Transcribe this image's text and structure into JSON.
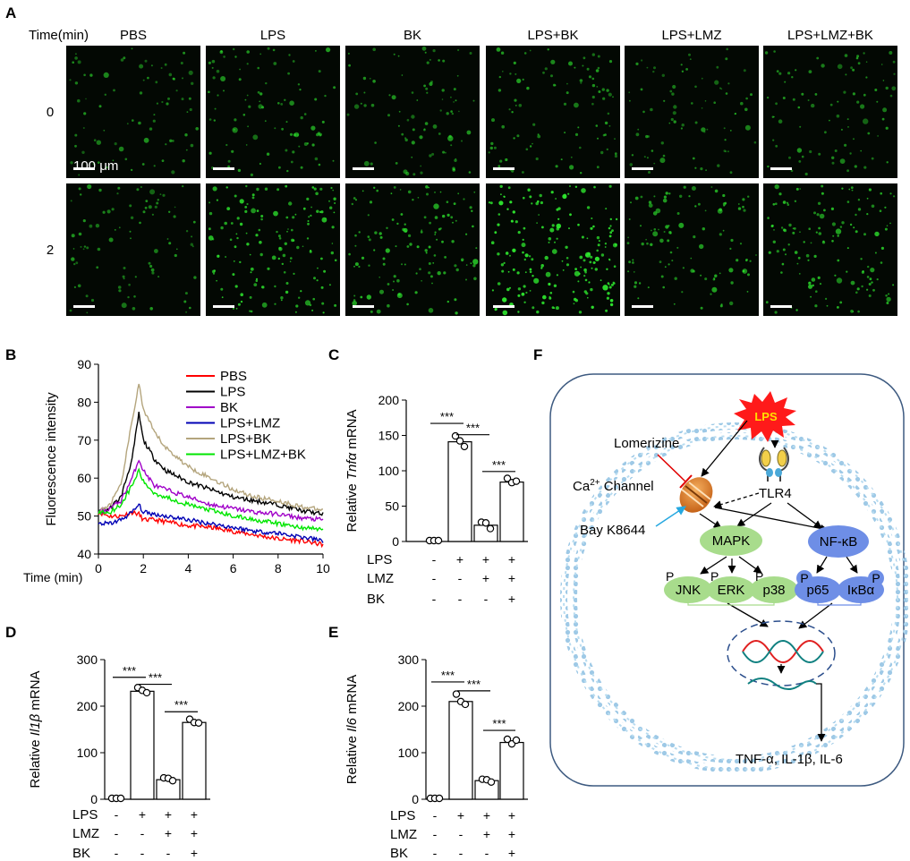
{
  "panel_letters": {
    "A": "A",
    "B": "B",
    "C": "C",
    "D": "D",
    "E": "E",
    "F": "F"
  },
  "panel_a": {
    "row_header": "Time(min)",
    "conditions": [
      "PBS",
      "LPS",
      "BK",
      "LPS+BK",
      "LPS+LMZ",
      "LPS+LMZ+BK"
    ],
    "times": [
      "0",
      "2"
    ],
    "scale_bar": "100 μm",
    "relative_fluorescence": [
      [
        0.25,
        0.35,
        0.3,
        0.35,
        0.25,
        0.3
      ],
      [
        0.3,
        0.7,
        0.55,
        0.95,
        0.45,
        0.6
      ]
    ],
    "colors": {
      "cell": "#2ee62e",
      "background": "#030803"
    }
  },
  "colors": {
    "PBS": "#ff0000",
    "LPS": "#000000",
    "BK": "#a000c8",
    "LPS+LMZ": "#0000b4",
    "LPS+BK": "#b4a57d",
    "LPS+LMZ+BK": "#00e600",
    "lps_burst": "#ff1a1a",
    "lps_text": "#ffe000",
    "membrane": "#9ec9e6",
    "mapk": "#a8dc8c",
    "nfkb": "#6e8ee6",
    "channel": "#e07d20",
    "bay_arrow": "#26a8e0",
    "lomerizine_bar": "#e00000",
    "dna_red": "#e02020",
    "dna_teal": "#108080",
    "dna_ellipse": "#2b4e8c"
  },
  "chart_data": [
    {
      "panel": "B",
      "type": "line",
      "xlabel": "Time (min)",
      "ylabel": "Fluorescence intensity",
      "xlim": [
        0,
        10
      ],
      "ylim": [
        40,
        90
      ],
      "xticks": [
        0,
        2,
        4,
        6,
        8,
        10
      ],
      "yticks": [
        40,
        50,
        60,
        70,
        80,
        90
      ],
      "legend": "top-right",
      "series": [
        {
          "name": "PBS",
          "color": "#ff0000",
          "x": [
            0,
            0.5,
            1,
            1.5,
            1.8,
            2,
            2.5,
            3,
            4,
            5,
            6,
            7,
            8,
            9,
            10
          ],
          "y": [
            51,
            50,
            50,
            51,
            50.5,
            49,
            49,
            48.5,
            47.5,
            47,
            46,
            45,
            44,
            43.5,
            42.5
          ]
        },
        {
          "name": "LPS",
          "color": "#000000",
          "x": [
            0,
            0.5,
            1,
            1.5,
            1.8,
            2,
            2.5,
            3,
            4,
            5,
            6,
            7,
            8,
            9,
            10
          ],
          "y": [
            51,
            52,
            55,
            65,
            77,
            70,
            65,
            62,
            59,
            57,
            55,
            54,
            53,
            51.5,
            50.5
          ]
        },
        {
          "name": "BK",
          "color": "#a000c8",
          "x": [
            0,
            0.5,
            1,
            1.5,
            1.8,
            2,
            2.5,
            3,
            4,
            5,
            6,
            7,
            8,
            9,
            10
          ],
          "y": [
            51,
            52,
            54,
            60,
            65,
            62,
            58,
            57,
            55,
            53,
            52,
            51,
            50.5,
            49.5,
            49
          ]
        },
        {
          "name": "LPS+LMZ",
          "color": "#0000b4",
          "x": [
            0,
            0.5,
            1,
            1.5,
            1.8,
            2,
            2.5,
            3,
            4,
            5,
            6,
            7,
            8,
            9,
            10
          ],
          "y": [
            48,
            48,
            49,
            51,
            53,
            51,
            50.5,
            50,
            49,
            48,
            47,
            46,
            45.5,
            44.5,
            43.5
          ]
        },
        {
          "name": "LPS+BK",
          "color": "#b4a57d",
          "x": [
            0,
            0.5,
            1,
            1.5,
            1.8,
            2,
            2.5,
            3,
            4,
            5,
            6,
            7,
            8,
            9,
            10
          ],
          "y": [
            51,
            53,
            58,
            75,
            85,
            78,
            72,
            68,
            63,
            60,
            57,
            55,
            54,
            52.5,
            51.5
          ]
        },
        {
          "name": "LPS+LMZ+BK",
          "color": "#00e600",
          "x": [
            0,
            0.5,
            1,
            1.5,
            1.8,
            2,
            2.5,
            3,
            4,
            5,
            6,
            7,
            8,
            9,
            10
          ],
          "y": [
            51,
            51,
            53,
            58,
            62,
            59,
            56,
            55,
            53,
            51.5,
            50,
            49,
            48,
            47,
            46.5
          ]
        }
      ]
    },
    {
      "panel": "C",
      "type": "bar",
      "ylabel_prefix": "Relative ",
      "ylabel_gene": "Tnfα",
      "ylabel_suffix": " mRNA",
      "ylim": [
        0,
        200
      ],
      "yticks": [
        0,
        50,
        100,
        150,
        200
      ],
      "values": [
        0,
        141,
        23,
        84
      ],
      "points": [
        [
          0,
          0,
          0
        ],
        [
          148,
          141,
          133
        ],
        [
          26,
          25,
          17
        ],
        [
          88,
          82,
          84
        ]
      ],
      "treatment_rows": [
        {
          "label": "LPS",
          "signs": [
            "-",
            "+",
            "+",
            "+"
          ]
        },
        {
          "label": "LMZ",
          "signs": [
            "-",
            "-",
            "+",
            "+"
          ]
        },
        {
          "label": "BK",
          "signs": [
            "-",
            "-",
            "-",
            "+"
          ]
        }
      ],
      "significance": [
        {
          "from": 0,
          "to": 1,
          "label": "***",
          "level": 167
        },
        {
          "from": 1,
          "to": 2,
          "label": "***",
          "level": 151
        },
        {
          "from": 2,
          "to": 3,
          "label": "***",
          "level": 99
        }
      ]
    },
    {
      "panel": "D",
      "type": "bar",
      "ylabel_prefix": "Relative ",
      "ylabel_gene": "Il1β",
      "ylabel_suffix": " mRNA",
      "ylim": [
        0,
        300
      ],
      "yticks": [
        0,
        100,
        200,
        300
      ],
      "values": [
        0,
        232,
        42,
        165
      ],
      "points": [
        [
          0,
          0,
          0
        ],
        [
          238,
          232,
          227
        ],
        [
          44,
          43,
          38
        ],
        [
          170,
          163,
          162
        ]
      ],
      "treatment_rows": [
        {
          "label": "LPS",
          "signs": [
            "-",
            "+",
            "+",
            "+"
          ]
        },
        {
          "label": "LMZ",
          "signs": [
            "-",
            "-",
            "+",
            "+"
          ]
        },
        {
          "label": "BK",
          "signs": [
            "-",
            "-",
            "-",
            "+"
          ]
        }
      ],
      "significance": [
        {
          "from": 0,
          "to": 1,
          "label": "***",
          "level": 262
        },
        {
          "from": 1,
          "to": 2,
          "label": "***",
          "level": 247
        },
        {
          "from": 2,
          "to": 3,
          "label": "***",
          "level": 188
        }
      ]
    },
    {
      "panel": "E",
      "type": "bar",
      "ylabel_prefix": "Relative ",
      "ylabel_gene": "Il6",
      "ylabel_suffix": " mRNA",
      "ylim": [
        0,
        300
      ],
      "yticks": [
        0,
        100,
        200,
        300
      ],
      "values": [
        0,
        210,
        40,
        122
      ],
      "points": [
        [
          0,
          0,
          0
        ],
        [
          224,
          208,
          202
        ],
        [
          41,
          40,
          35
        ],
        [
          127,
          117,
          125
        ]
      ],
      "treatment_rows": [
        {
          "label": "LPS",
          "signs": [
            "-",
            "+",
            "+",
            "+"
          ]
        },
        {
          "label": "LMZ",
          "signs": [
            "-",
            "-",
            "+",
            "+"
          ]
        },
        {
          "label": "BK",
          "signs": [
            "-",
            "-",
            "-",
            "+"
          ]
        }
      ],
      "significance": [
        {
          "from": 0,
          "to": 1,
          "label": "***",
          "level": 252
        },
        {
          "from": 1,
          "to": 2,
          "label": "***",
          "level": 233
        },
        {
          "from": 2,
          "to": 3,
          "label": "***",
          "level": 148
        }
      ]
    }
  ],
  "diagram_f": {
    "lps": "LPS",
    "lomerizine": "Lomerizine",
    "channel_prefix": "Ca",
    "channel_sup": "2+",
    "channel_suffix": " Channel",
    "bay": "Bay K8644",
    "tlr4": "TLR4",
    "mapk": "MAPK",
    "nfkb": "NF-κB",
    "p_mark": "P",
    "jnk": "JNK",
    "erk": "ERK",
    "p38": "p38",
    "p65": "p65",
    "ikba": "IκBα",
    "cytokines": "TNF-α, IL-1β, IL-6"
  }
}
